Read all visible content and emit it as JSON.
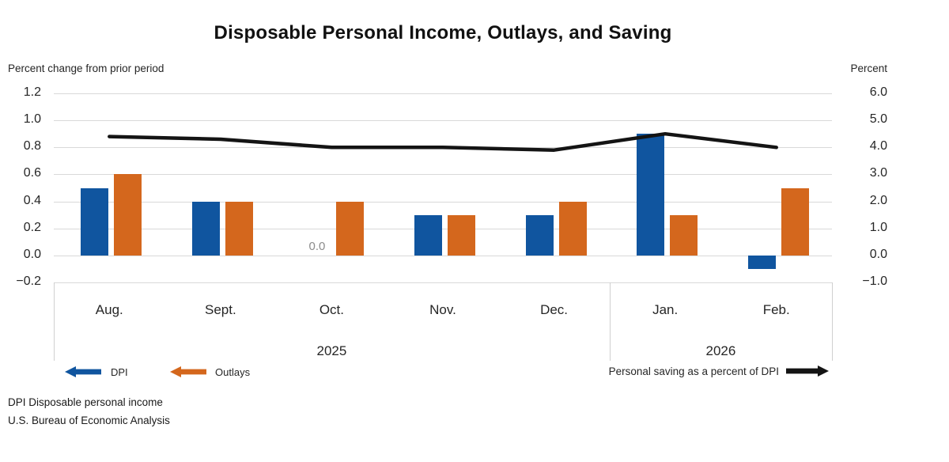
{
  "title": "Disposable Personal Income, Outlays, and Saving",
  "left_axis": {
    "caption": "Percent change from prior period",
    "ticks": [
      "1.2",
      "1.0",
      "0.8",
      "0.6",
      "0.4",
      "0.2",
      "0.0",
      "−0.2"
    ]
  },
  "right_axis": {
    "caption": "Percent",
    "ticks": [
      "6.0",
      "5.0",
      "4.0",
      "3.0",
      "2.0",
      "1.0",
      "0.0",
      "−1.0"
    ]
  },
  "legend": {
    "dpi_label": "DPI",
    "outlays_label": "Outlays",
    "saving_label": "Personal saving as a percent of DPI"
  },
  "footnotes": [
    "DPI Disposable personal income",
    "U.S. Bureau of Economic Analysis"
  ],
  "colors": {
    "dpi_bar": "#10559f",
    "outlays_bar": "#d4671d",
    "saving_line": "#141414",
    "gridline": "#d9d9d9",
    "axis_box_border": "#cfcfcf",
    "zero_label": "#8c8c8c"
  },
  "chart_data": {
    "type": "bar",
    "categories": [
      "Aug.",
      "Sept.",
      "Oct.",
      "Nov.",
      "Dec.",
      "Jan.",
      "Feb."
    ],
    "year_groups": [
      {
        "label": "2025",
        "span": [
          0,
          4
        ]
      },
      {
        "label": "2026",
        "span": [
          5,
          6
        ]
      }
    ],
    "series": [
      {
        "name": "DPI",
        "type": "bar",
        "axis": "left",
        "values": [
          0.5,
          0.4,
          0.0,
          0.3,
          0.3,
          0.9,
          -0.1
        ]
      },
      {
        "name": "Outlays",
        "type": "bar",
        "axis": "left",
        "values": [
          0.6,
          0.4,
          0.4,
          0.3,
          0.4,
          0.3,
          0.5
        ]
      },
      {
        "name": "Personal saving as a percent of DPI",
        "type": "line",
        "axis": "right",
        "values": [
          4.4,
          4.3,
          4.0,
          4.0,
          3.9,
          4.5,
          4.0
        ]
      }
    ],
    "data_labels": [
      {
        "series": "DPI",
        "category": "Oct.",
        "text": "0.0"
      }
    ],
    "left_ylim": [
      -0.2,
      1.2
    ],
    "right_ylim": [
      -1.0,
      6.0
    ],
    "grid": true,
    "legend_position": "bottom"
  }
}
